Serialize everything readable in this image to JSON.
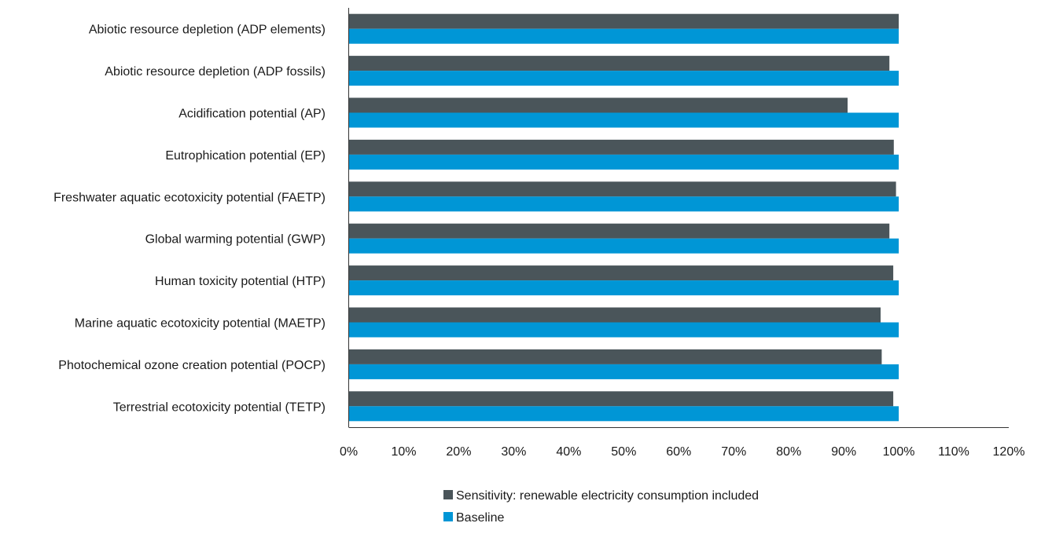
{
  "chart_data": {
    "type": "bar",
    "orientation": "horizontal",
    "categories": [
      "Abiotic resource depletion (ADP elements)",
      "Abiotic resource depletion (ADP fossils)",
      "Acidification potential (AP)",
      "Eutrophication potential (EP)",
      "Freshwater aquatic ecotoxicity potential (FAETP)",
      "Global warming potential (GWP)",
      "Human toxicity potential (HTP)",
      "Marine aquatic ecotoxicity potential (MAETP)",
      "Photochemical ozone creation potential (POCP)",
      "Terrestrial ecotoxicity potential (TETP)"
    ],
    "series": [
      {
        "name": "Sensitivity: renewable electricity consumption included",
        "color": "#4a555a",
        "values": [
          100,
          98.3,
          90.7,
          99.1,
          99.5,
          98.3,
          99.0,
          96.7,
          96.9,
          99.0
        ]
      },
      {
        "name": "Baseline",
        "color": "#0096d6",
        "values": [
          100,
          100,
          100,
          100,
          100,
          100,
          100,
          100,
          100,
          100
        ]
      }
    ],
    "xlim": [
      0,
      120
    ],
    "xticks": [
      "0%",
      "10%",
      "20%",
      "30%",
      "40%",
      "50%",
      "60%",
      "70%",
      "80%",
      "90%",
      "100%",
      "110%",
      "120%"
    ],
    "grid": false,
    "legend_position": "bottom"
  }
}
